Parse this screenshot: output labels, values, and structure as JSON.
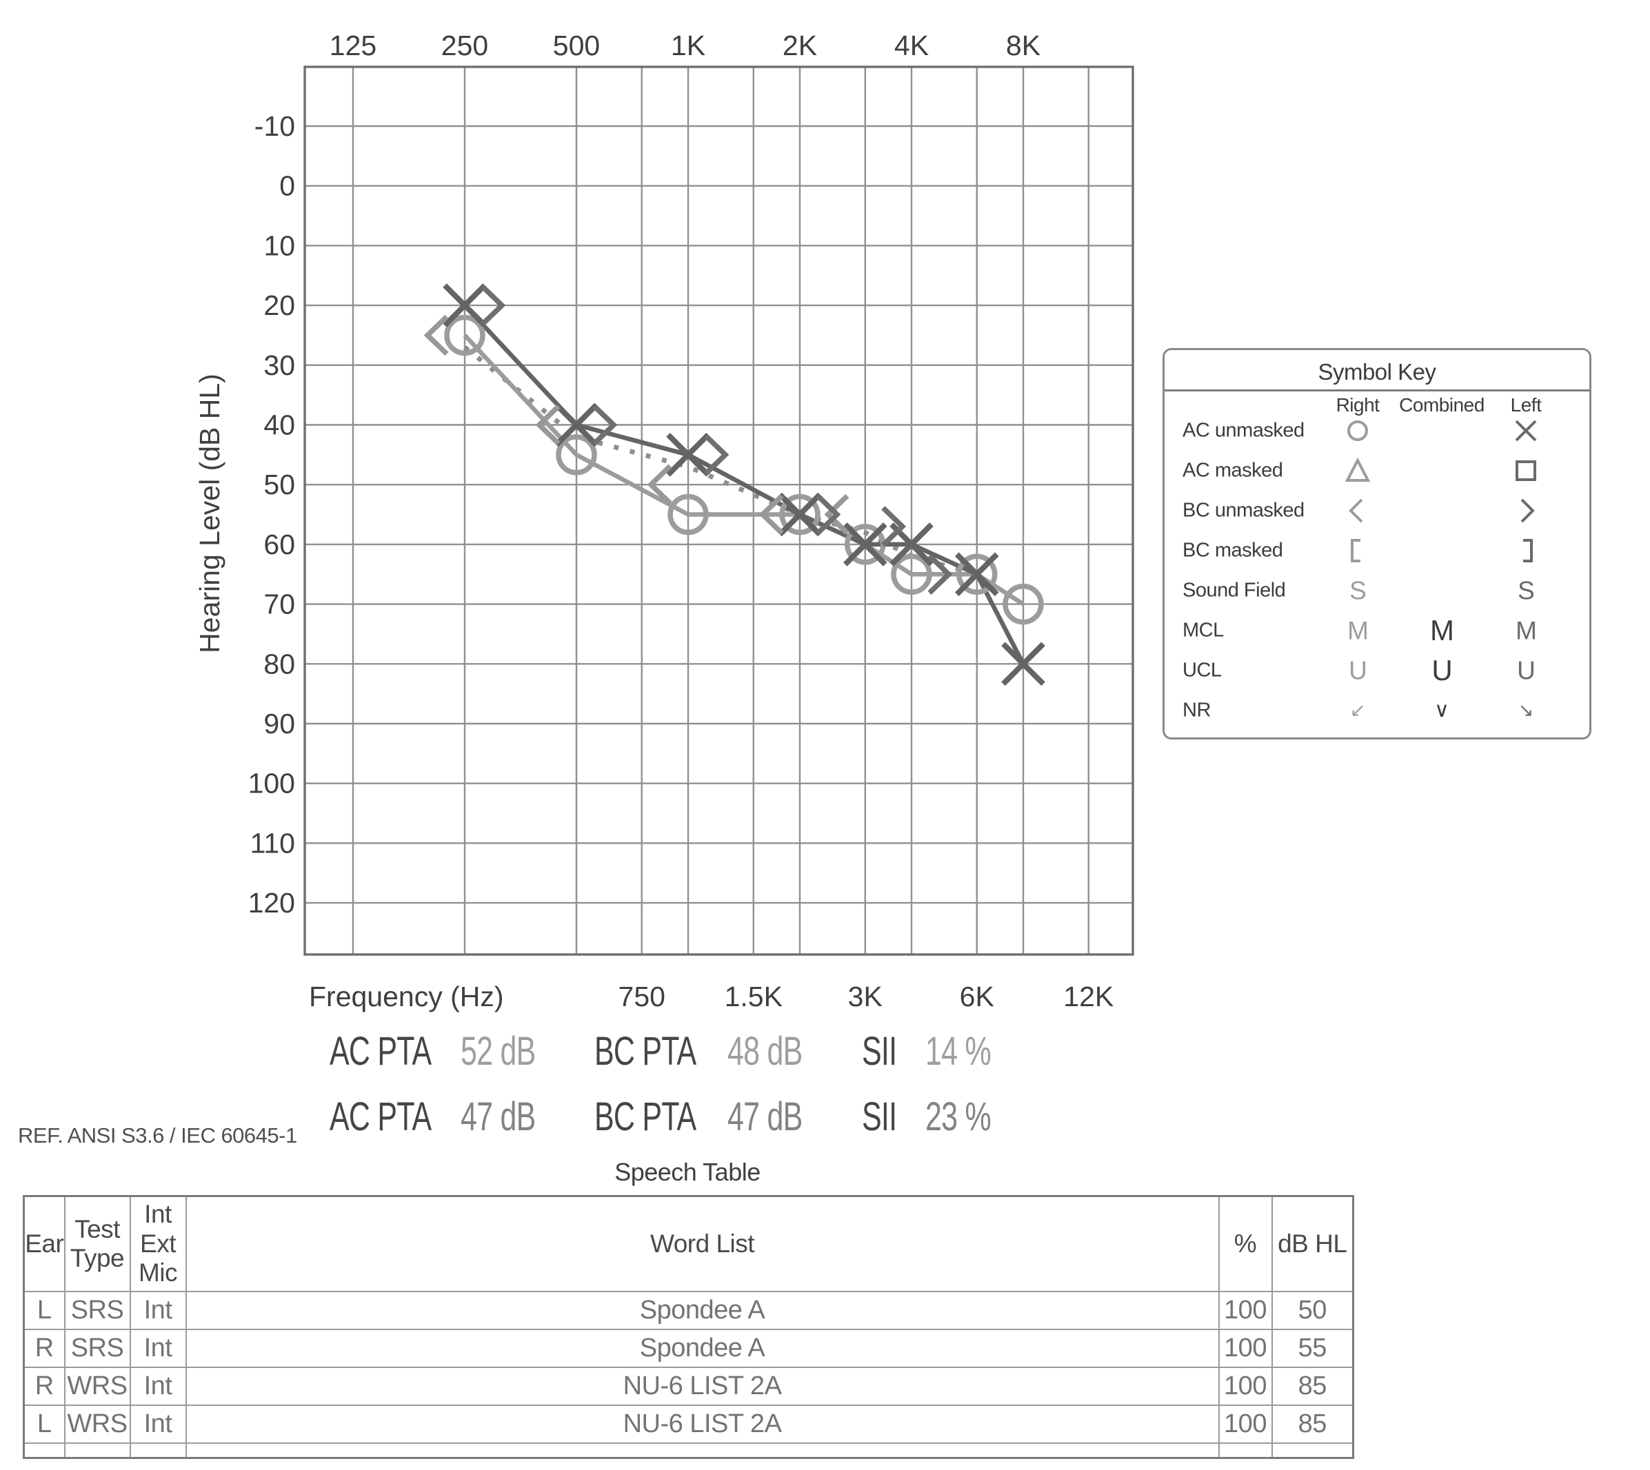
{
  "chart_data": {
    "type": "line",
    "subtype": "audiogram",
    "xlabel": "Frequency (Hz)",
    "ylabel": "Hearing Level (dB HL)",
    "x_axis": {
      "top_ticks": [
        {
          "f": 125,
          "label": "125"
        },
        {
          "f": 250,
          "label": "250"
        },
        {
          "f": 500,
          "label": "500"
        },
        {
          "f": 1000,
          "label": "1K"
        },
        {
          "f": 2000,
          "label": "2K"
        },
        {
          "f": 4000,
          "label": "4K"
        },
        {
          "f": 8000,
          "label": "8K"
        }
      ],
      "bottom_ticks": [
        {
          "f": 750,
          "label": "750"
        },
        {
          "f": 1500,
          "label": "1.5K"
        },
        {
          "f": 3000,
          "label": "3K"
        },
        {
          "f": 6000,
          "label": "6K"
        },
        {
          "f": 12000,
          "label": "12K"
        }
      ]
    },
    "y_axis": {
      "min": -10,
      "max": 120,
      "step": 10,
      "tick_labels": [
        "-10",
        "0",
        "10",
        "20",
        "30",
        "40",
        "50",
        "60",
        "70",
        "80",
        "90",
        "100",
        "110",
        "120"
      ]
    },
    "grid": true,
    "series": [
      {
        "id": "bc-interpolated",
        "name": "BC interpolated (dotted)",
        "symbol": "none",
        "connect": true,
        "dash": "7 17",
        "color": "#8f8f8f",
        "points": [
          [
            250,
            27
          ],
          [
            500,
            42
          ],
          [
            1000,
            47
          ],
          [
            2000,
            55
          ],
          [
            3000,
            58
          ],
          [
            4000,
            62
          ],
          [
            6000,
            65
          ]
        ]
      },
      {
        "id": "ac-right",
        "name": "AC unmasked Right (O)",
        "symbol": "circle",
        "connect": true,
        "color": "#9c9c9c",
        "points": [
          [
            250,
            25
          ],
          [
            500,
            45
          ],
          [
            1000,
            55
          ],
          [
            2000,
            55
          ],
          [
            3000,
            60
          ],
          [
            4000,
            65
          ],
          [
            6000,
            65
          ],
          [
            8000,
            70
          ]
        ]
      },
      {
        "id": "ac-left",
        "name": "AC unmasked Left (X)",
        "symbol": "x",
        "connect": true,
        "color": "#646464",
        "points": [
          [
            250,
            20
          ],
          [
            500,
            40
          ],
          [
            1000,
            45
          ],
          [
            2000,
            55
          ],
          [
            3000,
            60
          ],
          [
            4000,
            60
          ],
          [
            6000,
            65
          ],
          [
            8000,
            80
          ]
        ]
      },
      {
        "id": "bc-right",
        "name": "BC unmasked Right (<)",
        "symbol": "chevron-left",
        "connect": false,
        "symbol_dx": -40,
        "color": "#989898",
        "points": [
          [
            250,
            25
          ],
          [
            500,
            40
          ],
          [
            1000,
            50
          ],
          [
            2000,
            55
          ],
          [
            3000,
            55
          ]
        ]
      },
      {
        "id": "bc-left",
        "name": "BC unmasked Left (>)",
        "symbol": "chevron-right",
        "connect": false,
        "symbol_dx": 40,
        "color": "#6f6f6f",
        "points": [
          [
            250,
            20
          ],
          [
            500,
            40
          ],
          [
            1000,
            45
          ],
          [
            2000,
            55
          ],
          [
            3000,
            57
          ],
          [
            4000,
            65
          ]
        ]
      }
    ]
  },
  "colors": {
    "grid": "#909090",
    "border": "#6e6e6e",
    "tick_text": "#3f3f3f",
    "right_symbol": "#9c9c9c",
    "left_symbol": "#6a6a6a",
    "combined_symbol": "#3d3d3d"
  },
  "symbol_key": {
    "title": "Symbol Key",
    "columns": [
      "Right",
      "Combined",
      "Left"
    ],
    "rows": [
      {
        "label": "AC unmasked",
        "right": "circle",
        "combined": null,
        "left": "x"
      },
      {
        "label": "AC masked",
        "right": "triangle",
        "combined": null,
        "left": "square"
      },
      {
        "label": "BC unmasked",
        "right": "chevron-left",
        "combined": null,
        "left": "chevron-right"
      },
      {
        "label": "BC masked",
        "right": "bracket-left",
        "combined": null,
        "left": "bracket-right"
      },
      {
        "label": "Sound Field",
        "right": "S",
        "combined": null,
        "left": "S"
      },
      {
        "label": "MCL",
        "right": "M",
        "combined": "M",
        "left": "M"
      },
      {
        "label": "UCL",
        "right": "U",
        "combined": "U",
        "left": "U"
      },
      {
        "label": "NR",
        "right": "nr-left-arrow",
        "combined": "nr-down-chevron",
        "left": "nr-right-arrow"
      }
    ]
  },
  "pta": {
    "rows": [
      {
        "ac_label": "AC PTA",
        "ac_value": "52 dB",
        "bc_label": "BC PTA",
        "bc_value": "48 dB",
        "sii_label": "SII",
        "sii_value": "14 %"
      },
      {
        "ac_label": "AC PTA",
        "ac_value": "47 dB",
        "bc_label": "BC PTA",
        "bc_value": "47 dB",
        "sii_label": "SII",
        "sii_value": "23 %"
      }
    ]
  },
  "ref_text": "REF. ANSI S3.6 / IEC 60645-1",
  "speech_table": {
    "title": "Speech Table",
    "headers": [
      "Ear",
      "Test\nType",
      "Int\nExt\nMic",
      "Word List",
      "%",
      "dB HL"
    ],
    "rows": [
      {
        "ear": "L",
        "test": "SRS",
        "mic": "Int",
        "word_list": "Spondee A",
        "pct": "100",
        "db": "50"
      },
      {
        "ear": "R",
        "test": "SRS",
        "mic": "Int",
        "word_list": "Spondee A",
        "pct": "100",
        "db": "55"
      },
      {
        "ear": "R",
        "test": "WRS",
        "mic": "Int",
        "word_list": "NU-6 LIST 2A",
        "pct": "100",
        "db": "85"
      },
      {
        "ear": "L",
        "test": "WRS",
        "mic": "Int",
        "word_list": "NU-6 LIST 2A",
        "pct": "100",
        "db": "85"
      }
    ]
  }
}
